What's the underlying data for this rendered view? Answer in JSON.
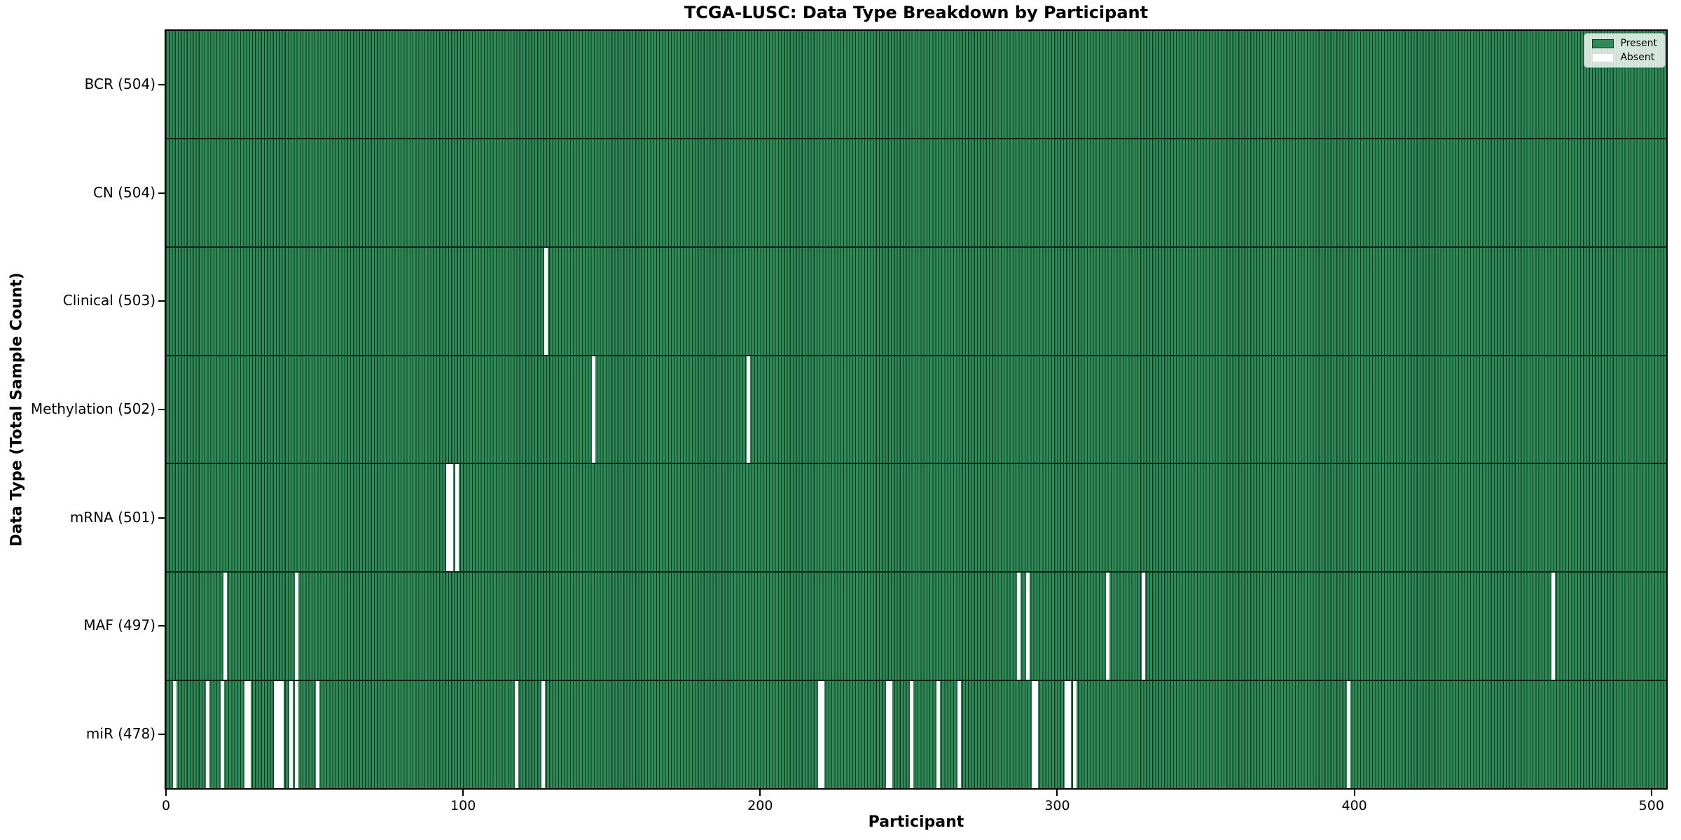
{
  "colors": {
    "present": "#2e8b57",
    "absent": "#ffffff",
    "bar_edge": "#123924",
    "row_divider": "#0a2416",
    "axis": "#000000",
    "legend_bg": "rgba(255,255,255,0.8)",
    "legend_border": "#9a9a9a",
    "absent_swatch_border": "#dddddd"
  },
  "chart_data": {
    "type": "heatmap",
    "title": "TCGA-LUSC: Data Type Breakdown by Participant",
    "xlabel": "Participant",
    "ylabel": "Data Type (Total Sample Count)",
    "x_ticks": [
      0,
      100,
      200,
      300,
      400,
      500
    ],
    "x_range": [
      0,
      505
    ],
    "n_participants": 504,
    "legend": {
      "position": "upper-right",
      "entries": [
        {
          "label": "Present",
          "color_key": "present"
        },
        {
          "label": "Absent",
          "color_key": "absent"
        }
      ]
    },
    "rows": [
      {
        "label": "BCR (504)",
        "data_type": "BCR",
        "present_count": 504,
        "absent_participants": []
      },
      {
        "label": "CN (504)",
        "data_type": "CN",
        "present_count": 504,
        "absent_participants": []
      },
      {
        "label": "Clinical (503)",
        "data_type": "Clinical",
        "present_count": 503,
        "absent_participants": [
          128
        ]
      },
      {
        "label": "Methylation (502)",
        "data_type": "Methylation",
        "present_count": 502,
        "absent_participants": [
          144,
          196
        ]
      },
      {
        "label": "mRNA (501)",
        "data_type": "mRNA",
        "present_count": 501,
        "absent_participants": [
          95,
          96,
          98
        ]
      },
      {
        "label": "MAF (497)",
        "data_type": "MAF",
        "present_count": 497,
        "absent_participants": [
          20,
          44,
          287,
          290,
          317,
          329,
          467
        ]
      },
      {
        "label": "miR (478)",
        "data_type": "miR",
        "present_count": 478,
        "absent_participants": [
          3,
          14,
          19,
          27,
          28,
          37,
          38,
          39,
          42,
          44,
          51,
          118,
          127,
          220,
          221,
          243,
          244,
          251,
          260,
          267,
          292,
          293,
          303,
          304,
          306,
          398
        ]
      }
    ]
  }
}
